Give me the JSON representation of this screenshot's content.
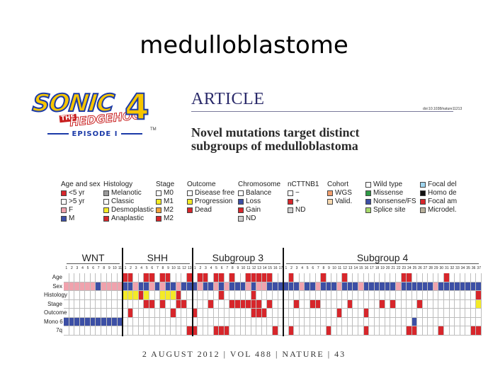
{
  "slide": {
    "title": "medulloblastome"
  },
  "logo": {
    "word1": "SONIC",
    "the": "THE",
    "word2": "HEDGEHOG",
    "number": "4",
    "episode": "EPISODE I",
    "tm": "TM"
  },
  "article": {
    "label": "ARTICLE",
    "doi": "doi:10.1038/nature11213",
    "headline_line1": "Novel mutations target distinct",
    "headline_line2": "subgroups of medulloblastoma"
  },
  "legend": {
    "groups": [
      {
        "title": "Age and sex",
        "items": [
          {
            "label": "<5 yr",
            "color": "#d7262b"
          },
          {
            "label": ">5 yr",
            "color": "#ffffff"
          },
          {
            "label": "F",
            "color": "#f0a2ad"
          },
          {
            "label": "M",
            "color": "#3c4fa5"
          }
        ]
      },
      {
        "title": "Histology",
        "items": [
          {
            "label": "Melanotic",
            "color": "#9a9a9a"
          },
          {
            "label": "Classic",
            "color": "#ffffff"
          },
          {
            "label": "Desmoplastic",
            "color": "#f4ea27"
          },
          {
            "label": "Anaplastic",
            "color": "#d7262b"
          }
        ]
      },
      {
        "title": "Stage",
        "items": [
          {
            "label": "M0",
            "color": "#ffffff"
          },
          {
            "label": "M1",
            "color": "#f4ea27"
          },
          {
            "label": "M2",
            "color": "#f2a23a"
          },
          {
            "label": "M2",
            "color": "#d7262b"
          }
        ]
      },
      {
        "title": "Outcome",
        "items": [
          {
            "label": "Disease free",
            "color": "#ffffff"
          },
          {
            "label": "Progression",
            "color": "#f4ea27"
          },
          {
            "label": "Dead",
            "color": "#d7262b"
          }
        ]
      },
      {
        "title": "Chromosome",
        "items": [
          {
            "label": "Balance",
            "color": "#ffffff"
          },
          {
            "label": "Loss",
            "color": "#3c4fa5"
          },
          {
            "label": "Gain",
            "color": "#d7262b"
          },
          {
            "label": "ND",
            "color": "#cfcfcf"
          }
        ]
      },
      {
        "title": "nCTTNB1",
        "items": [
          {
            "label": "−",
            "color": "#ffffff"
          },
          {
            "label": "+",
            "color": "#d7262b"
          },
          {
            "label": "ND",
            "color": "#cfcfcf"
          }
        ]
      },
      {
        "title": "Cohort",
        "items": [
          {
            "label": "WGS",
            "color": "#f2a070"
          },
          {
            "label": "Valid.",
            "color": "#f7d9b0"
          }
        ]
      },
      {
        "title": "",
        "items": [
          {
            "label": "Wild type",
            "color": "#ffffff"
          },
          {
            "label": "Missense",
            "color": "#2f9a46"
          },
          {
            "label": "Nonsense/FS",
            "color": "#3c4fa5"
          },
          {
            "label": "Splice site",
            "color": "#a6d86a"
          }
        ]
      },
      {
        "title": "",
        "items": [
          {
            "label": "Focal del",
            "color": "#9fd6f0"
          },
          {
            "label": "Homo de",
            "color": "#111111"
          },
          {
            "label": "Focal am",
            "color": "#d7262b"
          },
          {
            "label": "Microdel.",
            "color": "#b8b09a"
          }
        ]
      }
    ]
  },
  "heatmap": {
    "groups": [
      {
        "name": "WNT",
        "count": 11
      },
      {
        "name": "SHH",
        "count": 13
      },
      {
        "name": "Subgroup 3",
        "count": 17
      },
      {
        "name": "Subgroup 4",
        "count": 37
      }
    ],
    "rows": [
      "Age",
      "Sex",
      "Histology",
      "Stage",
      "Outcome",
      "Mono 6",
      "7q"
    ],
    "palette": {
      "w": "#ffffff",
      "r": "#d7262b",
      "p": "#f0a2ad",
      "b": "#3c4fa5",
      "y": "#f4ea27",
      "o": "#f2a23a",
      "g": "#cfcfcf"
    },
    "cells": [
      "wwwwwwwwwwwrrwwrrwrrwwwrwrrwrrwrwwrrrrrwwwrwwwwwrwwwrwwwwwwwwwwrrwwwwwwrwwwwww",
      "ppppppbppppbbpbbpbpbbpbbbpbbpbpbbbpbppbbbbbbpbbpbbbpbbbpbbbbbbpbbbbbbpbbbbbbbb",
      "wwwwwwwwwwwyyyrywwyyyrwwwwwwwrwwwwwrwwwwwwwwwwwwwwwwwwwwwwwwwwwwwwwwwwwwwwwwwr",
      "wwwwwwwwwwwwwwwrrwrwwrrwwwwrwwwrrrrrrwrwwwwrwwrrwwwwwrwwwwwrwrwwwwrwwwwwwwwwwy",
      "wwwwwwwwwwwwrwwwwwwwrwwwrwwwwwwwwwwrrrwwwwwwwwwwwwwrwwwwrwwwwwwwwwwwwwwwwwwwwwr",
      "bbbbbbbbbbbwwwwwwwwwwwwwwwwwwwwwwwwwwwwwwwwwwwwwwwwwwwwwwwwwwwwwwbwwwwwwwwwwww",
      "wwwwwwwwwwwwwwwwwwwwwwwrrwwwrrrwwwwwwwwrwwrwwwwwwrwwwwwwrwwwwwwwrrwwwwrwwwwwrrw"
    ]
  },
  "footer": {
    "text": "2 AUGUST 2012 | VOL 488 | NATURE | 43"
  }
}
